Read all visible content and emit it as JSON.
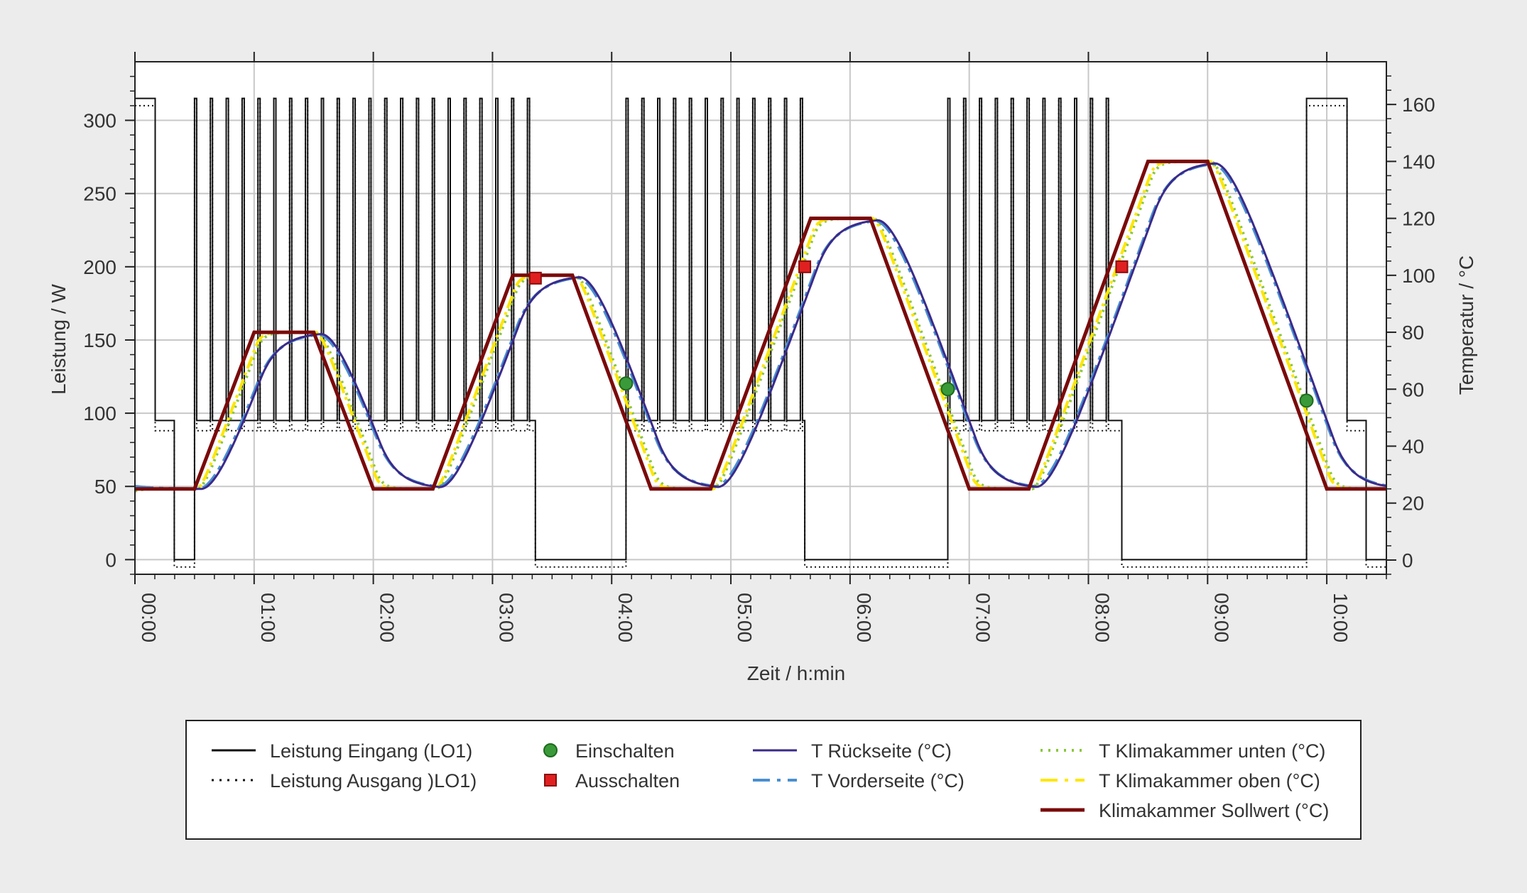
{
  "chart_data": {
    "type": "line",
    "xlabel": "Zeit / h:min",
    "ylabel_left": "Leistung / W",
    "ylabel_right": "Temperatur / °C",
    "x_unit": "hours",
    "xlim": [
      0,
      10.5
    ],
    "ylim_left": [
      -10,
      340
    ],
    "ylim_right": [
      -5,
      175
    ],
    "x_ticks": [
      0,
      1,
      2,
      3,
      4,
      5,
      6,
      7,
      8,
      9,
      10
    ],
    "x_tick_labels": [
      "00:00",
      "01:00",
      "02:00",
      "03:00",
      "04:00",
      "05:00",
      "06:00",
      "07:00",
      "08:00",
      "09:00",
      "10:00"
    ],
    "y_left_ticks": [
      0,
      50,
      100,
      150,
      200,
      250,
      300
    ],
    "y_right_ticks": [
      0,
      20,
      40,
      60,
      80,
      100,
      120,
      140,
      160
    ],
    "grid": true,
    "legend_placement": "below",
    "colors": {
      "leistung_eingang": "#111111",
      "leistung_ausgang": "#111111",
      "einschalten": "#3a9a3a",
      "ausschalten": "#e02020",
      "t_rueckseite": "#3b2a8a",
      "t_vorderseite": "#4a8fd0",
      "t_unten": "#8cc63f",
      "t_oben": "#ffe600",
      "sollwert": "#7a0a0a",
      "grid": "#c8c8c8"
    },
    "legend": [
      {
        "key": "leistung_eingang",
        "label": "Leistung Eingang (LO1)",
        "style": "solid"
      },
      {
        "key": "leistung_ausgang",
        "label": "Leistung Ausgang )LO1)",
        "style": "dotted"
      },
      {
        "key": "einschalten",
        "label": "Einschalten",
        "style": "circle"
      },
      {
        "key": "ausschalten",
        "label": "Ausschalten",
        "style": "square"
      },
      {
        "key": "t_rueckseite",
        "label": "T Rückseite (°C)",
        "style": "solid"
      },
      {
        "key": "t_vorderseite",
        "label": "T Vorderseite (°C)",
        "style": "dashdot"
      },
      {
        "key": "t_unten",
        "label": "T Klimakammer unten (°C)",
        "style": "dotted"
      },
      {
        "key": "t_oben",
        "label": "T Klimakammer oben (°C)",
        "style": "dashdot"
      },
      {
        "key": "sollwert",
        "label": "Klimakammer Sollwert (°C)",
        "style": "solid-thick"
      }
    ],
    "sollwert_profile": [
      [
        0,
        25
      ],
      [
        0.5,
        25
      ],
      [
        1,
        80
      ],
      [
        1.5,
        80
      ],
      [
        2,
        25
      ],
      [
        2.5,
        25
      ],
      [
        3.17,
        100
      ],
      [
        3.67,
        100
      ],
      [
        4.33,
        25
      ],
      [
        4.83,
        25
      ],
      [
        5.67,
        120
      ],
      [
        6.17,
        120
      ],
      [
        7,
        25
      ],
      [
        7.5,
        25
      ],
      [
        8.5,
        140
      ],
      [
        9,
        140
      ],
      [
        10,
        25
      ],
      [
        10.5,
        25
      ]
    ],
    "einschalten": [
      [
        4.12,
        62
      ],
      [
        6.82,
        60
      ],
      [
        9.83,
        56
      ]
    ],
    "ausschalten": [
      [
        3.36,
        99
      ],
      [
        5.62,
        103
      ],
      [
        8.28,
        103
      ]
    ],
    "power_on_segments": [
      {
        "from": 0.0,
        "to": 0.17,
        "mode": "full"
      },
      {
        "from": 0.17,
        "to": 0.33,
        "mode": "idle"
      },
      {
        "from": 0.33,
        "to": 0.5,
        "mode": "off"
      },
      {
        "from": 0.5,
        "to": 3.36,
        "mode": "pwm",
        "pulse_period": 0.133
      },
      {
        "from": 3.36,
        "to": 4.12,
        "mode": "off"
      },
      {
        "from": 4.12,
        "to": 5.62,
        "mode": "pwm",
        "pulse_period": 0.133
      },
      {
        "from": 5.62,
        "to": 6.82,
        "mode": "off"
      },
      {
        "from": 6.82,
        "to": 8.28,
        "mode": "pwm",
        "pulse_period": 0.133
      },
      {
        "from": 8.28,
        "to": 9.83,
        "mode": "off"
      },
      {
        "from": 9.83,
        "to": 10.17,
        "mode": "full"
      },
      {
        "from": 10.17,
        "to": 10.33,
        "mode": "idle"
      },
      {
        "from": 10.33,
        "to": 10.5,
        "mode": "off"
      }
    ],
    "power_levels": {
      "full": 315,
      "idle": 95,
      "off": 0,
      "idle_output": 88,
      "off_output": -5
    }
  }
}
